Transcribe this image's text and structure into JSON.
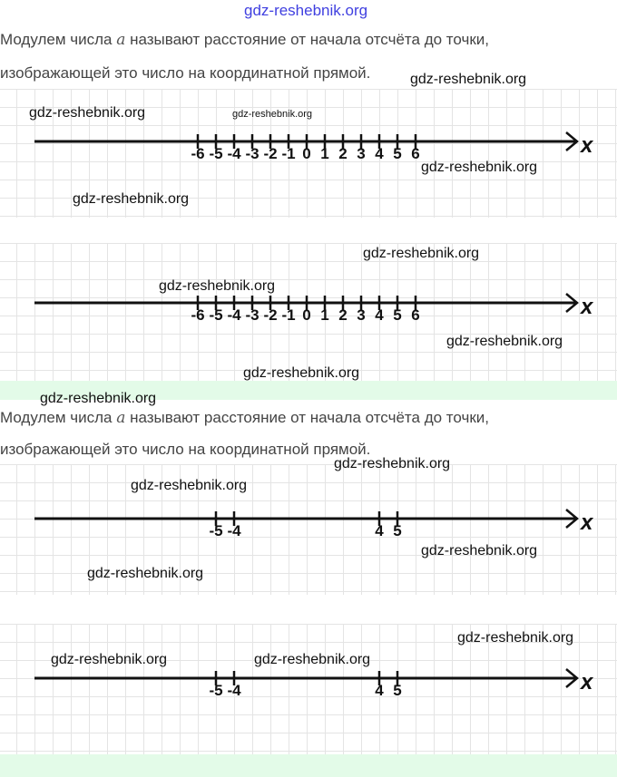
{
  "header": {
    "watermark": "gdz-reshebnik.org"
  },
  "text_block": {
    "line1_before": "Модулем числа ",
    "variable": "a",
    "line1_after": " называют расстояние от начала отсчёта до точки,",
    "line2": "изображающей это число на координатной прямой."
  },
  "watermark": "gdz-reshebnik.org",
  "axis_label": "x",
  "number_lines": [
    {
      "ticks": [
        -6,
        -5,
        -4,
        -3,
        -2,
        -1,
        0,
        1,
        2,
        3,
        4,
        5,
        6
      ],
      "labels": [
        "-6",
        "-5",
        "-4",
        "-3",
        "-2",
        "-1",
        "0",
        "1",
        "2",
        "3",
        "4",
        "5",
        "6"
      ]
    },
    {
      "ticks": [
        -6,
        -5,
        -4,
        -3,
        -2,
        -1,
        0,
        1,
        2,
        3,
        4,
        5,
        6
      ],
      "labels": [
        "-6",
        "-5",
        "-4",
        "-3",
        "-2",
        "-1",
        "0",
        "1",
        "2",
        "3",
        "4",
        "5",
        "6"
      ]
    },
    {
      "ticks": [
        -5,
        -4,
        4,
        5
      ],
      "labels": [
        "-5",
        "-4",
        "4",
        "5"
      ]
    },
    {
      "ticks": [
        -5,
        -4,
        4,
        5
      ],
      "labels": [
        "-5",
        "-4",
        "4",
        "5"
      ]
    }
  ]
}
